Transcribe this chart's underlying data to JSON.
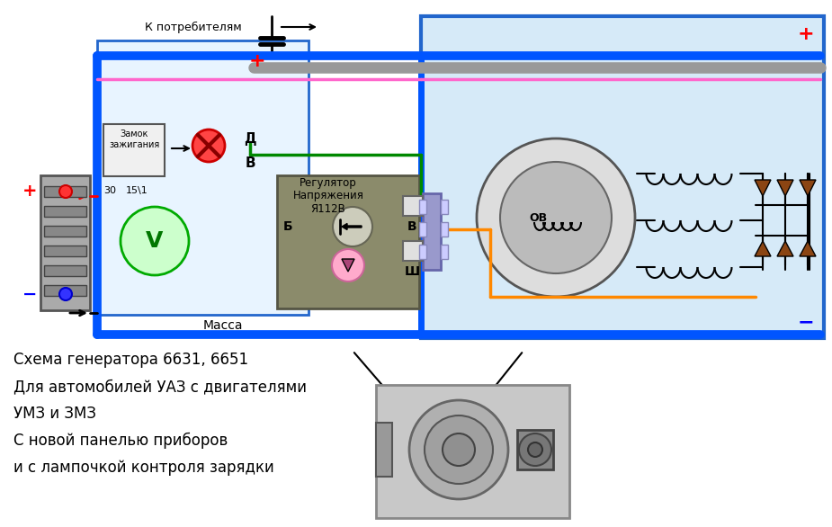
{
  "bg_color": "#ffffff",
  "diagram_bg": "#d6eaf8",
  "left_panel_bg": "#e8f4ff",
  "title_lines": [
    "Схема генератора 6631, 6651",
    "Для автомобилей УАЗ с двигателями",
    "УМЗ и ЗМЗ",
    "С новой панелью приборов",
    "и с лампочкой контроля зарядки"
  ],
  "label_k_potrebitelyam": "К потребителям",
  "label_massa": "Масса",
  "label_zamok": "Замок\nзажигания",
  "label_regulator": "Регулятор\nНапряжения\nЯ112В",
  "label_d": "Д",
  "label_b": "В",
  "label_b2": "Б",
  "label_v2": "В",
  "label_sh": "Ш",
  "label_ov": "ОВ",
  "label_30": "30",
  "label_15_1": "15\\1",
  "plus_color": "#ff0000",
  "minus_color": "#0000ff",
  "wire_blue": "#0055ff",
  "wire_green": "#008800",
  "wire_pink": "#ff66cc",
  "wire_orange": "#ff8800",
  "wire_red": "#ff0000",
  "wire_black": "#000000",
  "wire_gray": "#888888"
}
